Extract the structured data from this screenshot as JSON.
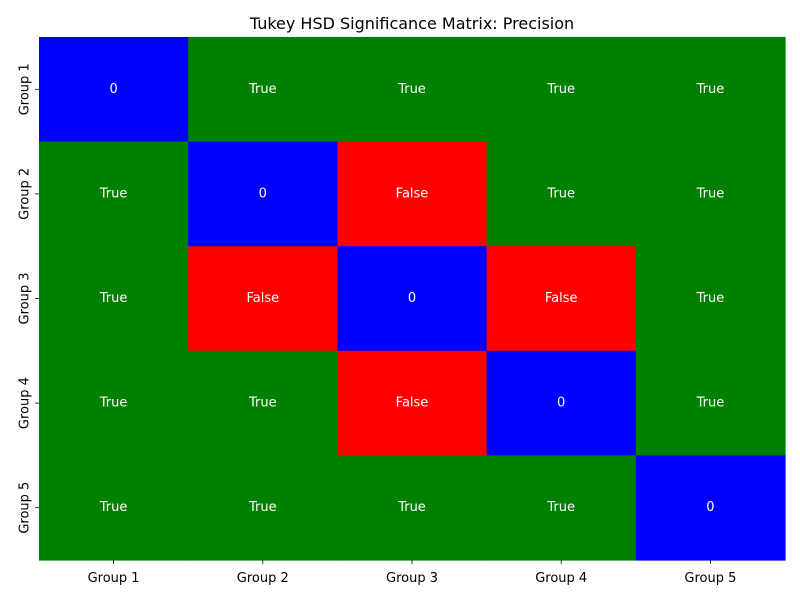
{
  "chart_data": {
    "type": "heatmap",
    "title": "Tukey HSD Significance Matrix: Precision",
    "xlabel": "",
    "ylabel": "",
    "x_categories": [
      "Group 1",
      "Group 2",
      "Group 3",
      "Group 4",
      "Group 5"
    ],
    "y_categories": [
      "Group 1",
      "Group 2",
      "Group 3",
      "Group 4",
      "Group 5"
    ],
    "values": [
      [
        "0",
        "True",
        "True",
        "True",
        "True"
      ],
      [
        "True",
        "0",
        "False",
        "True",
        "True"
      ],
      [
        "True",
        "False",
        "0",
        "False",
        "True"
      ],
      [
        "True",
        "True",
        "False",
        "0",
        "True"
      ],
      [
        "True",
        "True",
        "True",
        "True",
        "0"
      ]
    ],
    "colors": {
      "0": "#0000ff",
      "True": "#008000",
      "False": "#ff0000"
    },
    "label_color": "#ffffff",
    "colorbar": false,
    "grid": false
  }
}
